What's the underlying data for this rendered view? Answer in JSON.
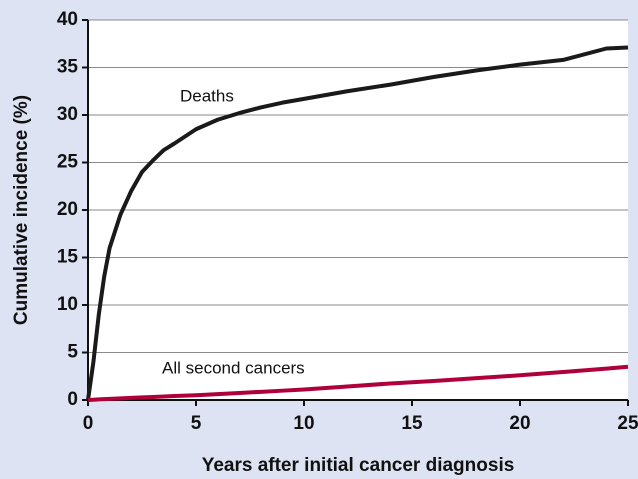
{
  "chart_data": {
    "type": "line",
    "xlabel": "Years after initial cancer diagnosis",
    "ylabel": "Cumulative incidence (%)",
    "xlim": [
      0,
      25
    ],
    "xticks": [
      0,
      5,
      10,
      15,
      20,
      25
    ],
    "ylim": [
      0,
      40
    ],
    "yticks": [
      0,
      5,
      10,
      15,
      20,
      25,
      30,
      35,
      40
    ],
    "grid": true,
    "x": [
      0,
      0.25,
      0.5,
      0.75,
      1,
      1.5,
      2,
      2.5,
      3,
      3.5,
      4,
      5,
      6,
      7,
      8,
      9,
      10,
      12,
      14,
      16,
      18,
      20,
      22,
      24,
      25
    ],
    "series": [
      {
        "name": "Deaths",
        "color": "#1a1a1a",
        "values": [
          0,
          4,
          9,
          13,
          16,
          19.5,
          22,
          24,
          25.2,
          26.3,
          27,
          28.5,
          29.5,
          30.2,
          30.8,
          31.3,
          31.7,
          32.5,
          33.2,
          34,
          34.7,
          35.3,
          35.8,
          37,
          37.1
        ]
      },
      {
        "name": "All second cancers",
        "color": "#b0003a",
        "values": [
          0,
          0.03,
          0.06,
          0.09,
          0.12,
          0.17,
          0.22,
          0.27,
          0.32,
          0.37,
          0.42,
          0.5,
          0.62,
          0.74,
          0.86,
          0.98,
          1.1,
          1.42,
          1.74,
          2.0,
          2.3,
          2.6,
          2.95,
          3.3,
          3.5
        ]
      }
    ]
  }
}
